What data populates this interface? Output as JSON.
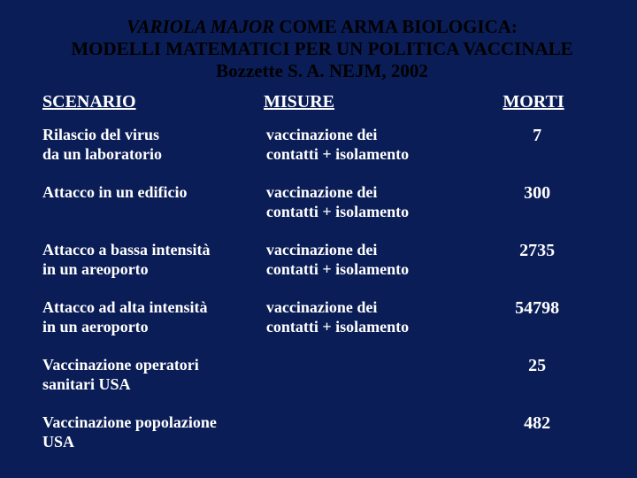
{
  "background_color": "#0a1d56",
  "text_color": "#ffffff",
  "title_color": "#000000",
  "font_family": "Times New Roman",
  "title": {
    "line1_italic": "VARIOLA MAJOR",
    "line1_rest": " COME ARMA BIOLOGICA:",
    "line2": "MODELLI MATEMATICI PER UN POLITICA VACCINALE",
    "line3": "Bozzette S. A. NEJM, 2002"
  },
  "headers": {
    "scenario": "SCENARIO",
    "misure": "MISURE",
    "morti": "MORTI"
  },
  "rows": [
    {
      "scenario": "Rilascio del virus\nda un laboratorio",
      "misure": "vaccinazione dei\ncontatti + isolamento",
      "morti": "7"
    },
    {
      "scenario": "Attacco in un edificio",
      "misure": "vaccinazione dei\ncontatti + isolamento",
      "morti": "300"
    },
    {
      "scenario": "Attacco a bassa intensità\nin un areoporto",
      "misure": "vaccinazione dei\ncontatti + isolamento",
      "morti": "2735"
    },
    {
      "scenario": "Attacco ad alta intensità\nin un aeroporto",
      "misure": "vaccinazione dei\ncontatti + isolamento",
      "morti": "54798"
    },
    {
      "scenario": "Vaccinazione operatori\nsanitari USA",
      "misure": "",
      "morti": "25"
    },
    {
      "scenario": "Vaccinazione popolazione\nUSA",
      "misure": "",
      "morti": "482"
    }
  ]
}
